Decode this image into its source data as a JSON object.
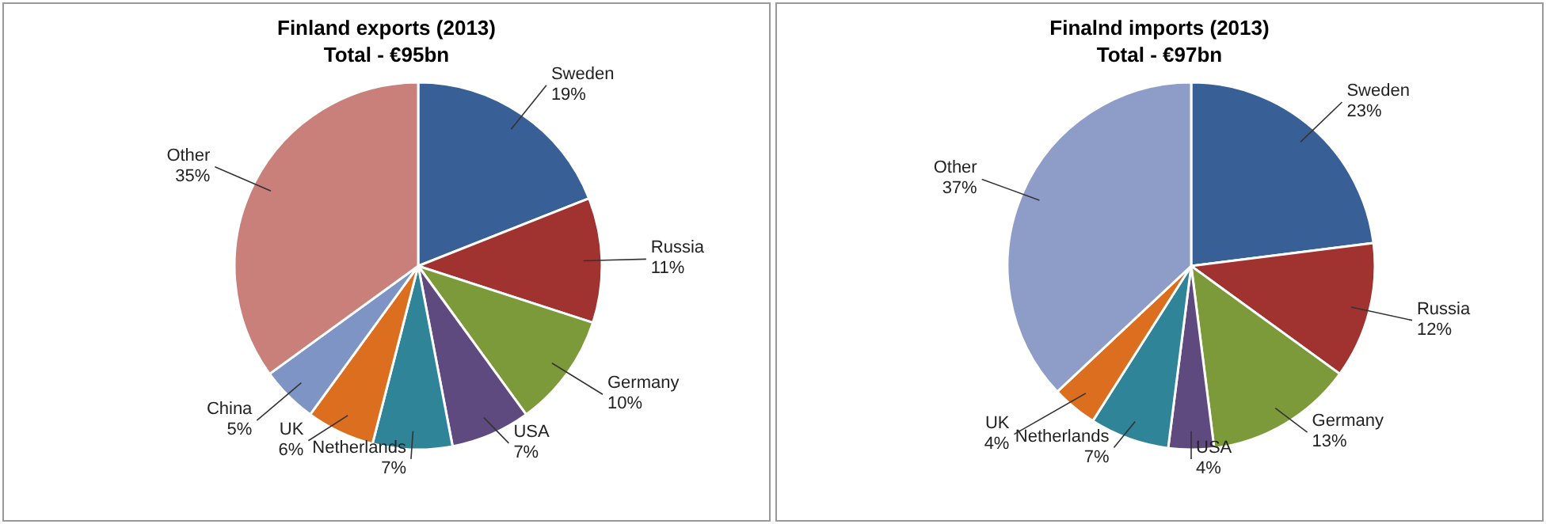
{
  "chart_data": [
    {
      "type": "pie",
      "title": "Finland exports (2013)",
      "subtitle": "Total - €95bn",
      "categories": [
        "Sweden",
        "Russia",
        "Germany",
        "USA",
        "Netherlands",
        "UK",
        "China",
        "Other"
      ],
      "values": [
        19,
        11,
        10,
        7,
        7,
        6,
        5,
        35
      ],
      "value_labels": [
        "19%",
        "11%",
        "10%",
        "7%",
        "7%",
        "6%",
        "5%",
        "35%"
      ],
      "colors": [
        "#386096",
        "#a0322f",
        "#7d9a3a",
        "#5e4a7e",
        "#2f8497",
        "#db6e1f",
        "#7e94c4",
        "#c9807b"
      ]
    },
    {
      "type": "pie",
      "title": "Finalnd imports (2013)",
      "subtitle": "Total - €97bn",
      "categories": [
        "Sweden",
        "Russia",
        "Germany",
        "USA",
        "Netherlands",
        "UK",
        "Other"
      ],
      "values": [
        23,
        12,
        13,
        4,
        7,
        4,
        37
      ],
      "value_labels": [
        "23%",
        "12%",
        "13%",
        "4%",
        "7%",
        "4%",
        "37%"
      ],
      "colors": [
        "#386096",
        "#a0322f",
        "#7d9a3a",
        "#5e4a7e",
        "#2f8497",
        "#db6e1f",
        "#8d9dc8"
      ]
    }
  ]
}
